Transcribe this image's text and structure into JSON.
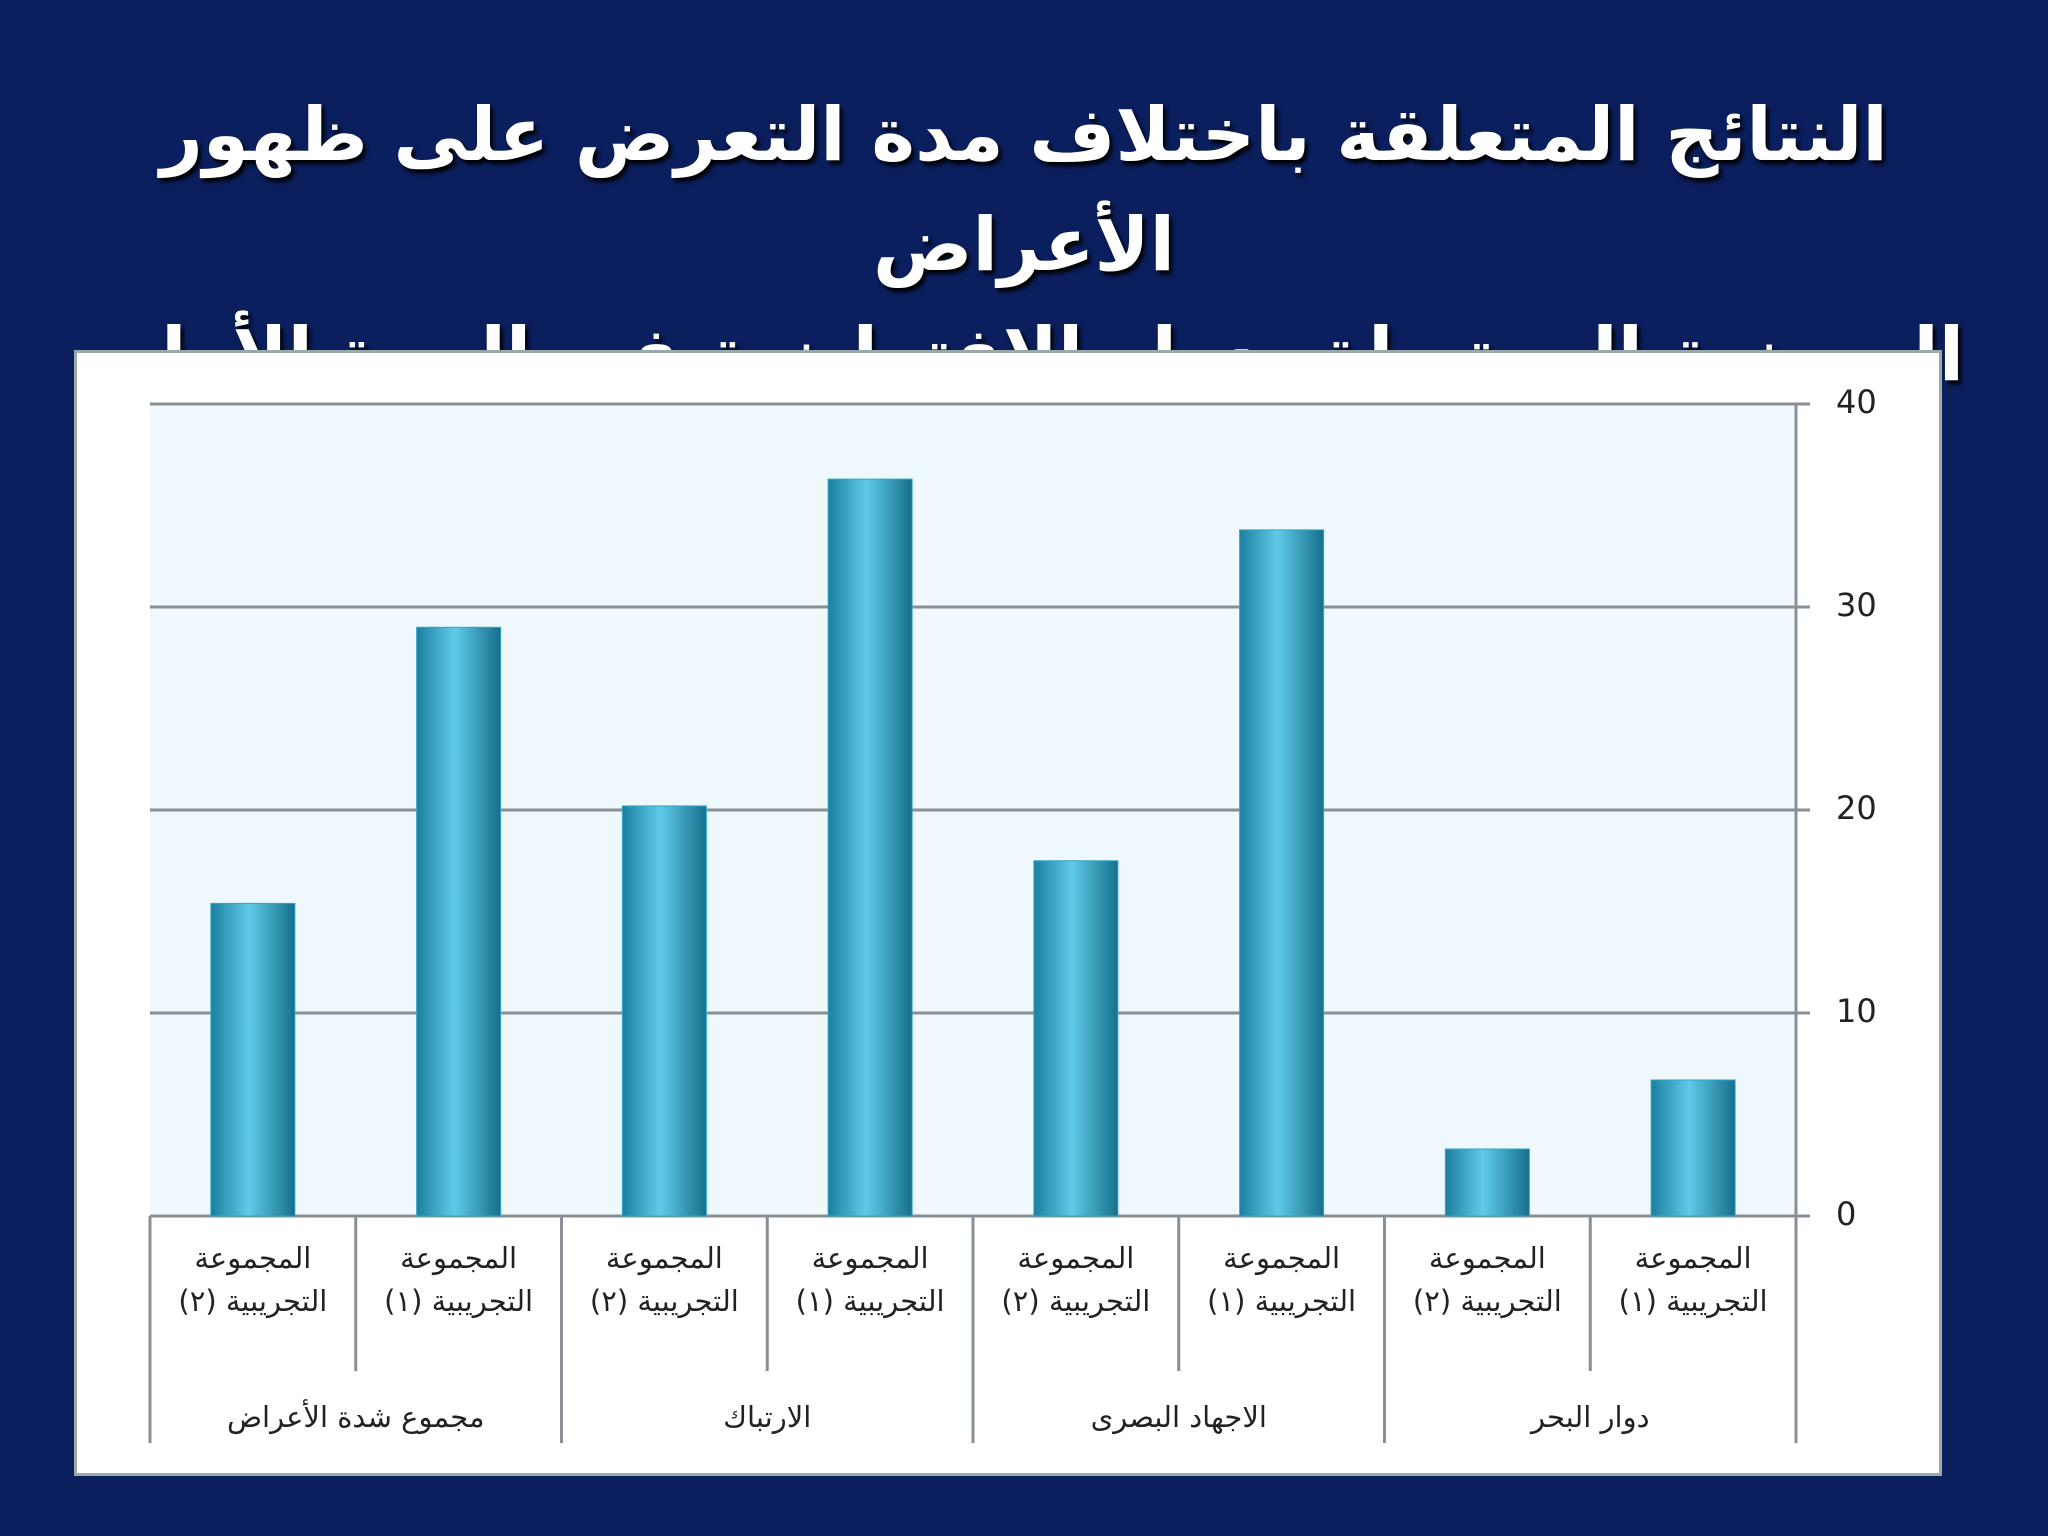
{
  "chart_data": {
    "type": "bar",
    "title": [
      "النتائج المتعلقة باختلاف مدة التعرض على ظهور الأعراض",
      "المرضية المرتبطة بدوار الافتراضية فى المرة الأولى"
    ],
    "categories": [
      "المجموعة التجريبية (١)",
      "المجموعة التجريبية (٢)",
      "المجموعة التجريبية (١)",
      "المجموعة التجريبية (٢)",
      "المجموعة التجريبية (١)",
      "المجموعة التجريبية (٢)",
      "المجموعة التجريبية (١)",
      "المجموعة التجريبية (٢)"
    ],
    "groups": [
      "دوار البحر",
      "الاجهاد البصرى",
      "الارتباك",
      "مجموع شدة الأعراض"
    ],
    "values": [
      6.7,
      3.3,
      33.8,
      17.5,
      36.3,
      20.2,
      29,
      15.4
    ],
    "color": "#2fa6c9",
    "ylim": [
      0,
      40
    ],
    "yticks": [
      0,
      10,
      20,
      30,
      40
    ],
    "grid": true
  }
}
